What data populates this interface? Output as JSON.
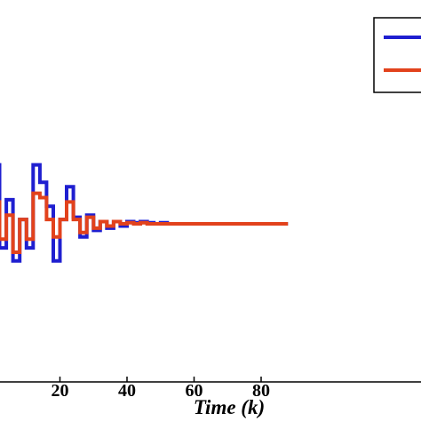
{
  "chart_data": {
    "type": "line",
    "step": true,
    "title": "",
    "xlabel": "Time (k)",
    "ylabel": "",
    "xticks": [
      20,
      40,
      60,
      80
    ],
    "ylim": [
      -1.17,
      1.3
    ],
    "grid": false,
    "legend": {
      "placement": "top-right",
      "entries_visible": false
    },
    "series": [
      {
        "color": "#1f1fd0",
        "points": [
          [
            0,
            0.27
          ],
          [
            1,
            0.27
          ],
          [
            2,
            -0.11
          ],
          [
            3,
            -0.11
          ],
          [
            4,
            0.11
          ],
          [
            5,
            0.11
          ],
          [
            6,
            -0.17
          ],
          [
            7,
            -0.17
          ],
          [
            8,
            0.02
          ],
          [
            9,
            0.02
          ],
          [
            10,
            -0.11
          ],
          [
            11,
            -0.11
          ],
          [
            12,
            0.27
          ],
          [
            13,
            0.27
          ],
          [
            14,
            0.19
          ],
          [
            15,
            0.19
          ],
          [
            16,
            0.08
          ],
          [
            17,
            0.08
          ],
          [
            18,
            -0.17
          ],
          [
            19,
            -0.17
          ],
          [
            20,
            0.02
          ],
          [
            21,
            0.02
          ],
          [
            22,
            0.17
          ],
          [
            23,
            0.17
          ],
          [
            24,
            0.03
          ],
          [
            25,
            0.03
          ],
          [
            26,
            -0.06
          ],
          [
            27,
            -0.06
          ],
          [
            28,
            0.04
          ],
          [
            29,
            0.04
          ],
          [
            30,
            -0.03
          ],
          [
            31,
            -0.03
          ],
          [
            32,
            0.01
          ],
          [
            33,
            0.01
          ],
          [
            34,
            -0.02
          ],
          [
            35,
            -0.02
          ],
          [
            36,
            0.01
          ],
          [
            37,
            0.01
          ],
          [
            38,
            -0.01
          ],
          [
            39,
            -0.01
          ],
          [
            40,
            0.01
          ],
          [
            41,
            0.01
          ],
          [
            42,
            0.005
          ],
          [
            43,
            0.005
          ],
          [
            44,
            0.01
          ],
          [
            45,
            0.01
          ],
          [
            46,
            0.005
          ],
          [
            47,
            0.005
          ],
          [
            48,
            0.0
          ],
          [
            49,
            0.0
          ],
          [
            50,
            0.005
          ],
          [
            51,
            0.005
          ],
          [
            52,
            0.0
          ],
          [
            53,
            0.0
          ],
          [
            54,
            0.0
          ],
          [
            55,
            0.0
          ],
          [
            56,
            0.0
          ],
          [
            57,
            0.0
          ],
          [
            58,
            0.0
          ],
          [
            59,
            0.0
          ],
          [
            60,
            0.0
          ],
          [
            61,
            0.0
          ],
          [
            62,
            0.0
          ],
          [
            63,
            0.0
          ],
          [
            64,
            0.0
          ],
          [
            65,
            0.0
          ],
          [
            66,
            0.0
          ],
          [
            67,
            0.0
          ],
          [
            68,
            0.0
          ],
          [
            69,
            0.0
          ],
          [
            70,
            0.0
          ],
          [
            71,
            0.0
          ],
          [
            72,
            0.0
          ],
          [
            73,
            0.0
          ],
          [
            74,
            0.0
          ],
          [
            75,
            0.0
          ],
          [
            76,
            0.0
          ],
          [
            77,
            0.0
          ],
          [
            78,
            0.0
          ],
          [
            79,
            0.0
          ],
          [
            80,
            0.0
          ],
          [
            81,
            0.0
          ],
          [
            82,
            0.0
          ],
          [
            83,
            0.0
          ],
          [
            84,
            0.0
          ],
          [
            85,
            0.0
          ],
          [
            86,
            0.0
          ],
          [
            87,
            0.0
          ],
          [
            88,
            0.0
          ]
        ]
      },
      {
        "color": "#e2421c",
        "points": [
          [
            0,
            0.1
          ],
          [
            1,
            0.1
          ],
          [
            2,
            -0.07
          ],
          [
            3,
            -0.07
          ],
          [
            4,
            0.04
          ],
          [
            5,
            0.04
          ],
          [
            6,
            -0.13
          ],
          [
            7,
            -0.13
          ],
          [
            8,
            0.02
          ],
          [
            9,
            0.02
          ],
          [
            10,
            -0.07
          ],
          [
            11,
            -0.07
          ],
          [
            12,
            0.14
          ],
          [
            13,
            0.14
          ],
          [
            14,
            0.12
          ],
          [
            15,
            0.12
          ],
          [
            16,
            0.02
          ],
          [
            17,
            0.02
          ],
          [
            18,
            -0.06
          ],
          [
            19,
            -0.06
          ],
          [
            20,
            0.02
          ],
          [
            21,
            0.02
          ],
          [
            22,
            0.1
          ],
          [
            23,
            0.1
          ],
          [
            24,
            0.02
          ],
          [
            25,
            0.02
          ],
          [
            26,
            -0.04
          ],
          [
            27,
            -0.04
          ],
          [
            28,
            0.03
          ],
          [
            29,
            0.03
          ],
          [
            30,
            -0.02
          ],
          [
            31,
            -0.02
          ],
          [
            32,
            0.01
          ],
          [
            33,
            0.01
          ],
          [
            34,
            -0.01
          ],
          [
            35,
            -0.01
          ],
          [
            36,
            0.01
          ],
          [
            37,
            0.01
          ],
          [
            38,
            0.0
          ],
          [
            39,
            0.0
          ],
          [
            40,
            0.005
          ],
          [
            41,
            0.005
          ],
          [
            42,
            0.0
          ],
          [
            43,
            0.0
          ],
          [
            44,
            0.005
          ],
          [
            45,
            0.005
          ],
          [
            46,
            0.0
          ],
          [
            47,
            0.0
          ],
          [
            48,
            0.0
          ],
          [
            49,
            0.0
          ],
          [
            50,
            0.0
          ],
          [
            51,
            0.0
          ],
          [
            52,
            0.0
          ],
          [
            53,
            0.0
          ],
          [
            54,
            0.0
          ],
          [
            55,
            0.0
          ],
          [
            56,
            0.0
          ],
          [
            57,
            0.0
          ],
          [
            58,
            0.0
          ],
          [
            59,
            0.0
          ],
          [
            60,
            0.0
          ],
          [
            61,
            0.0
          ],
          [
            62,
            0.0
          ],
          [
            63,
            0.0
          ],
          [
            64,
            0.0
          ],
          [
            65,
            0.0
          ],
          [
            66,
            0.0
          ],
          [
            67,
            0.0
          ],
          [
            68,
            0.0
          ],
          [
            69,
            0.0
          ],
          [
            70,
            0.0
          ],
          [
            71,
            0.0
          ],
          [
            72,
            0.0
          ],
          [
            73,
            0.0
          ],
          [
            74,
            0.0
          ],
          [
            75,
            0.0
          ],
          [
            76,
            0.0
          ],
          [
            77,
            0.0
          ],
          [
            78,
            0.0
          ],
          [
            79,
            0.0
          ],
          [
            80,
            0.0
          ],
          [
            81,
            0.0
          ],
          [
            82,
            0.0
          ],
          [
            83,
            0.0
          ],
          [
            84,
            0.0
          ],
          [
            85,
            0.0
          ],
          [
            86,
            0.0
          ],
          [
            87,
            0.0
          ],
          [
            88,
            0.0
          ]
        ]
      }
    ]
  }
}
